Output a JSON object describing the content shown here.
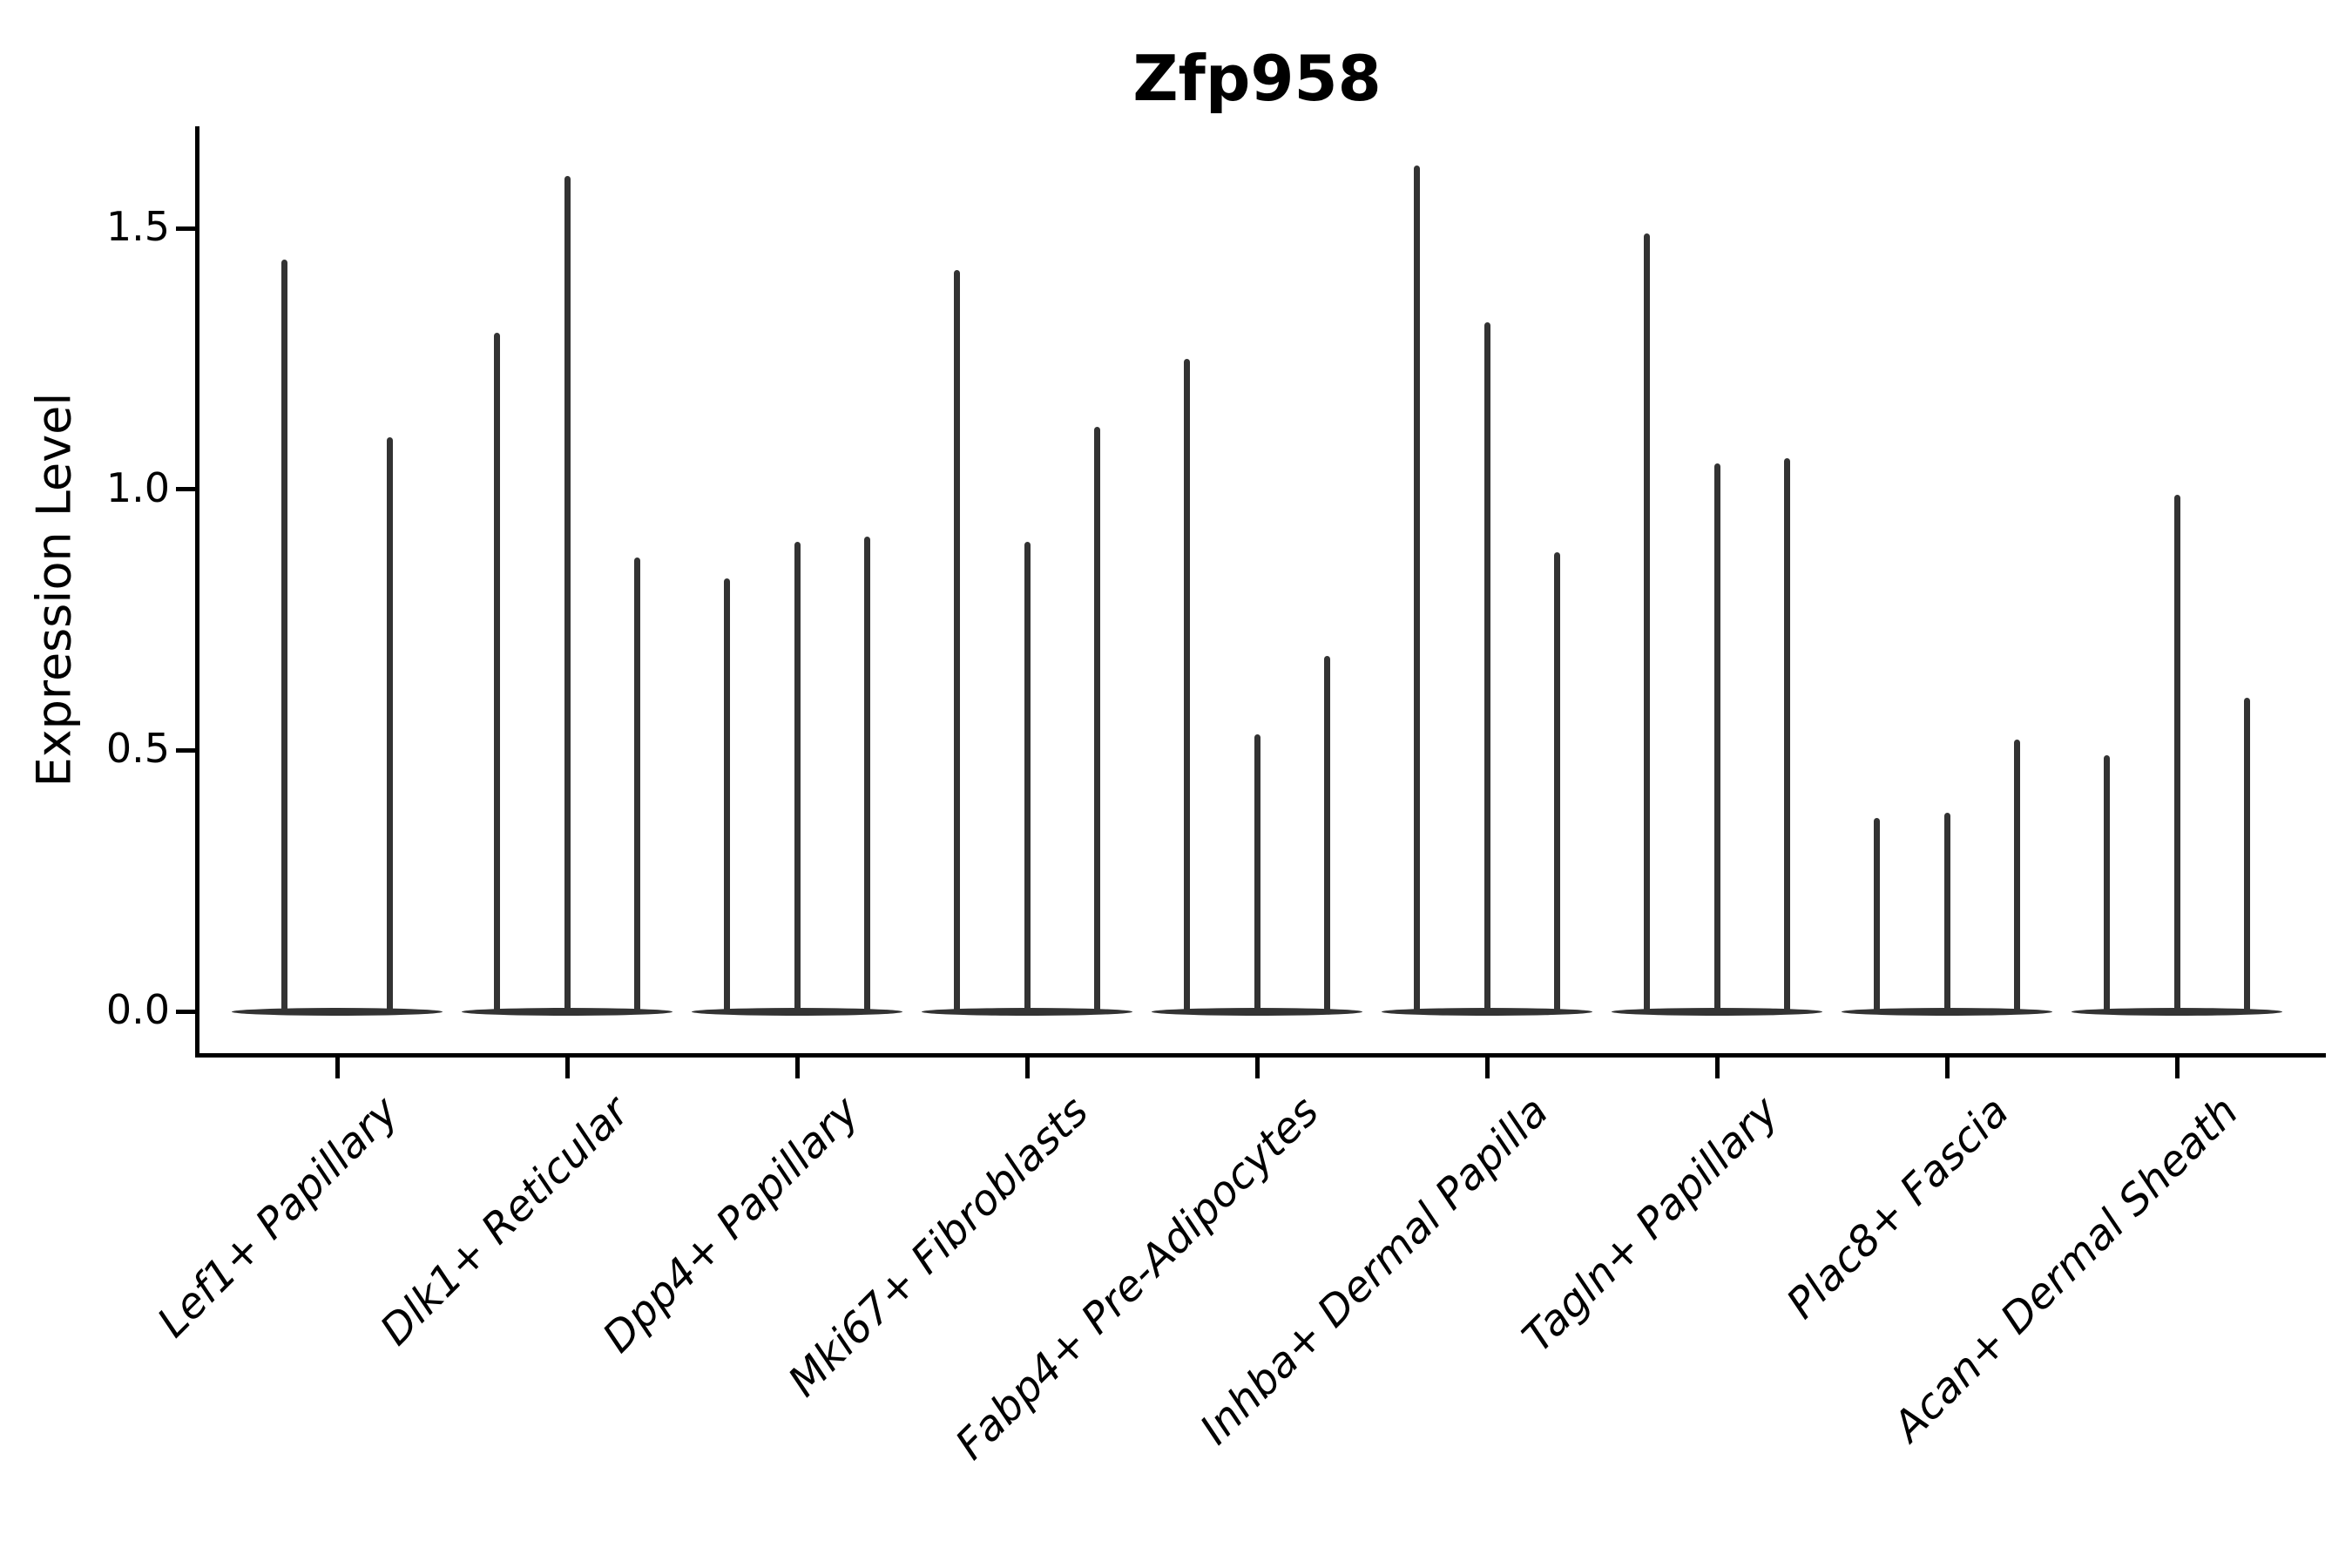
{
  "title": "Zfp958",
  "axes": {
    "ylabel": "Expression Level",
    "xlabel": ""
  },
  "chart_data": {
    "type": "violin",
    "title": "Zfp958",
    "ylabel": "Expression Level",
    "xlabel": "",
    "grid": false,
    "legend": "none",
    "ylim": [
      -0.08,
      1.7
    ],
    "yticks": [
      0.0,
      0.5,
      1.0,
      1.5
    ],
    "ytick_labels": [
      "0.0",
      "0.5",
      "1.0",
      "1.5"
    ],
    "categories": [
      "Lef1+ Papillary",
      "Dlk1+ Reticular",
      "Dpp4+ Papillary",
      "Mki67+ Fibroblasts",
      "Fabp4+ Pre-Adipocytes",
      "Inhba+ Dermal Papilla",
      "Tagln+ Papillary",
      "Plac8+ Fascia",
      "Acan+ Dermal Sheath"
    ],
    "series": [
      {
        "category": "Lef1+ Papillary",
        "violin_max_values": [
          1.44,
          1.1
        ]
      },
      {
        "category": "Dlk1+ Reticular",
        "violin_max_values": [
          1.3,
          1.6,
          0.87
        ]
      },
      {
        "category": "Dpp4+ Papillary",
        "violin_max_values": [
          0.83,
          0.9,
          0.91
        ]
      },
      {
        "category": "Mki67+ Fibroblasts",
        "violin_max_values": [
          1.42,
          0.9,
          1.12
        ]
      },
      {
        "category": "Fabp4+ Pre-Adipocytes",
        "violin_max_values": [
          1.25,
          0.53,
          0.68
        ]
      },
      {
        "category": "Inhba+ Dermal Papilla",
        "violin_max_values": [
          1.62,
          1.32,
          0.88
        ]
      },
      {
        "category": "Tagln+ Papillary",
        "violin_max_values": [
          1.49,
          1.05,
          1.06
        ]
      },
      {
        "category": "Plac8+ Fascia",
        "violin_max_values": [
          0.37,
          0.38,
          0.52
        ]
      },
      {
        "category": "Acan+ Dermal Sheath",
        "violin_max_values": [
          0.49,
          0.99,
          0.6
        ]
      }
    ],
    "violin_shape": "needle; distribution mass at 0 with thin tail up to max value",
    "violin_color": "#333333",
    "axis_color": "#000000",
    "background_color": "#ffffff"
  }
}
